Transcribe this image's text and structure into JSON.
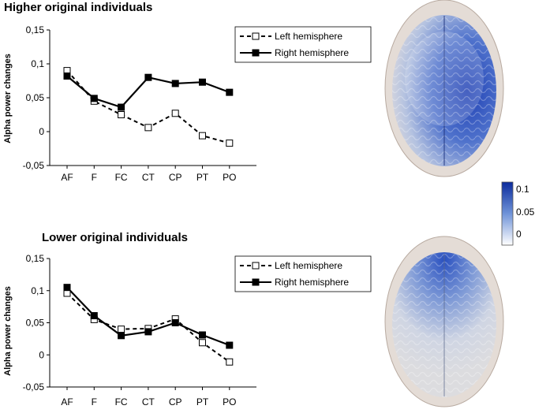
{
  "chart_data": [
    {
      "type": "line",
      "title": "Higher original individuals",
      "xlabel": "",
      "ylabel": "Alpha power changes",
      "categories": [
        "AF",
        "F",
        "FC",
        "CT",
        "CP",
        "PT",
        "PO"
      ],
      "ylim": [
        -0.05,
        0.15
      ],
      "yticks": [
        "-0,05",
        "0",
        "0,05",
        "0,1",
        "0,15"
      ],
      "legend_position": "top-right",
      "grid": false,
      "series": [
        {
          "name": "Left hemisphere",
          "style": "dashed",
          "marker": "open-square",
          "values": [
            0.09,
            0.045,
            0.025,
            0.006,
            0.027,
            -0.006,
            -0.017
          ]
        },
        {
          "name": "Right hemisphere",
          "style": "solid",
          "marker": "filled-square",
          "values": [
            0.082,
            0.049,
            0.036,
            0.08,
            0.071,
            0.073,
            0.058
          ]
        }
      ]
    },
    {
      "type": "line",
      "title": "Lower original individuals",
      "xlabel": "",
      "ylabel": "Alpha power changes",
      "categories": [
        "AF",
        "F",
        "FC",
        "CT",
        "CP",
        "PT",
        "PO"
      ],
      "ylim": [
        -0.05,
        0.15
      ],
      "yticks": [
        "-0,05",
        "0",
        "0,05",
        "0,1",
        "0,15"
      ],
      "legend_position": "top-right",
      "grid": false,
      "series": [
        {
          "name": "Left hemisphere",
          "style": "dashed",
          "marker": "open-square",
          "values": [
            0.096,
            0.055,
            0.04,
            0.041,
            0.056,
            0.019,
            -0.011
          ]
        },
        {
          "name": "Right hemisphere",
          "style": "solid",
          "marker": "filled-square",
          "values": [
            0.105,
            0.061,
            0.03,
            0.036,
            0.05,
            0.031,
            0.015
          ]
        }
      ]
    }
  ],
  "colorbar": {
    "ticks": [
      "0.1",
      "0.05",
      "0"
    ],
    "colors": {
      "high": "#0a2a9c",
      "mid": "#6f93d8",
      "low": "#ffffff"
    }
  },
  "brain_images": [
    {
      "panel": "Higher original individuals",
      "highlight_color": "#2343b8",
      "highlight": "right-hemisphere"
    },
    {
      "panel": "Lower original individuals",
      "highlight_color": "#2f5cc4",
      "highlight": "frontal"
    }
  ]
}
